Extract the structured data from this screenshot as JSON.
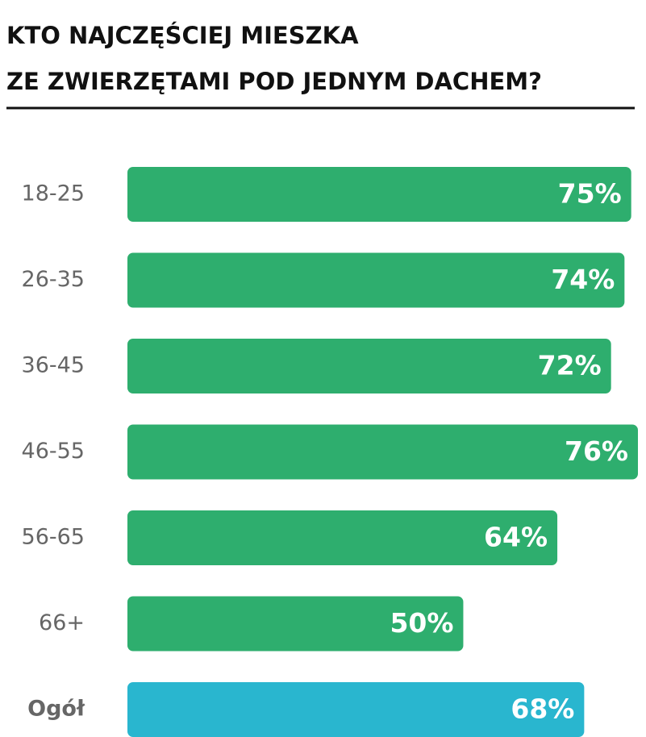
{
  "chart_data": {
    "type": "bar",
    "orientation": "horizontal",
    "title": [
      "KTO NAJCZĘŚCIEJ MIESZKA",
      "ZE ZWIERZĘTAMI POD JEDNYM DACHEM?"
    ],
    "categories": [
      "18-25",
      "26-35",
      "36-45",
      "46-55",
      "56-65",
      "66+",
      "Ogół"
    ],
    "values": [
      75,
      74,
      72,
      76,
      64,
      50,
      68
    ],
    "value_labels": [
      "75%",
      "74%",
      "72%",
      "76%",
      "64%",
      "50%",
      "68%"
    ],
    "colors": [
      "#2eae6e",
      "#2eae6e",
      "#2eae6e",
      "#2eae6e",
      "#2eae6e",
      "#2eae6e",
      "#29b6cf"
    ]
  }
}
